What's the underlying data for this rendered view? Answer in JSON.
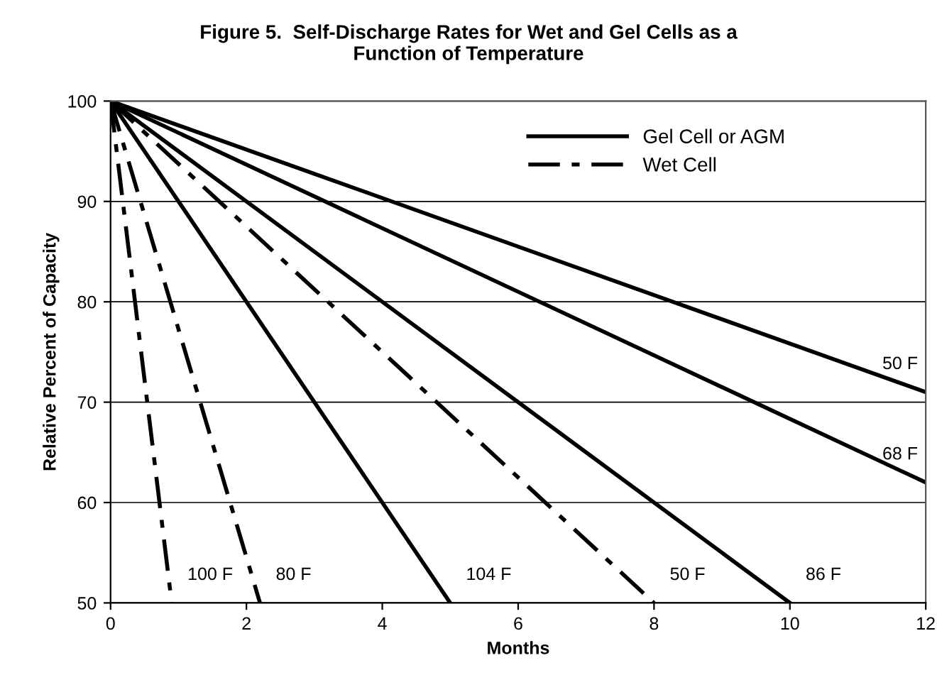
{
  "chart_data": {
    "type": "line",
    "title": "Figure 5.  Self-Discharge Rates for Wet and Gel Cells as a\nFunction of Temperature",
    "xlabel": "Months",
    "ylabel": "Relative Percent of Capacity",
    "xlim": [
      0,
      12
    ],
    "ylim": [
      50,
      100
    ],
    "xticks": [
      0,
      2,
      4,
      6,
      8,
      10,
      12
    ],
    "yticks": [
      50,
      60,
      70,
      80,
      90,
      100
    ],
    "grid": "y",
    "legend": "top",
    "marker": "none",
    "series": [
      {
        "name": "Gel Cell or AGM",
        "color": "#000000",
        "line_style": "solid",
        "x": [
          0,
          12
        ],
        "values": [
          100,
          71
        ]
      },
      {
        "color": "#000000",
        "line_style": "solid",
        "x": [
          0,
          12
        ],
        "values": [
          100,
          62
        ]
      },
      {
        "color": "#000000",
        "line_style": "solid",
        "x": [
          0,
          10
        ],
        "values": [
          100,
          50
        ]
      },
      {
        "color": "#000000",
        "line_style": "solid",
        "x": [
          0,
          5
        ],
        "values": [
          100,
          50
        ]
      },
      {
        "name": "Wet Cell",
        "color": "#000000",
        "line_style": "dashed",
        "x": [
          0,
          8
        ],
        "values": [
          100,
          50
        ]
      },
      {
        "color": "#000000",
        "line_style": "dashed",
        "x": [
          0,
          2.2
        ],
        "values": [
          100,
          50
        ]
      },
      {
        "color": "#000000",
        "line_style": "dashed",
        "x": [
          0,
          0.9
        ],
        "values": [
          100,
          50
        ]
      }
    ],
    "annotations": [
      "50 F",
      "68 F",
      "86 F",
      "104 F",
      "50 F",
      "80 F",
      "100 F"
    ]
  }
}
